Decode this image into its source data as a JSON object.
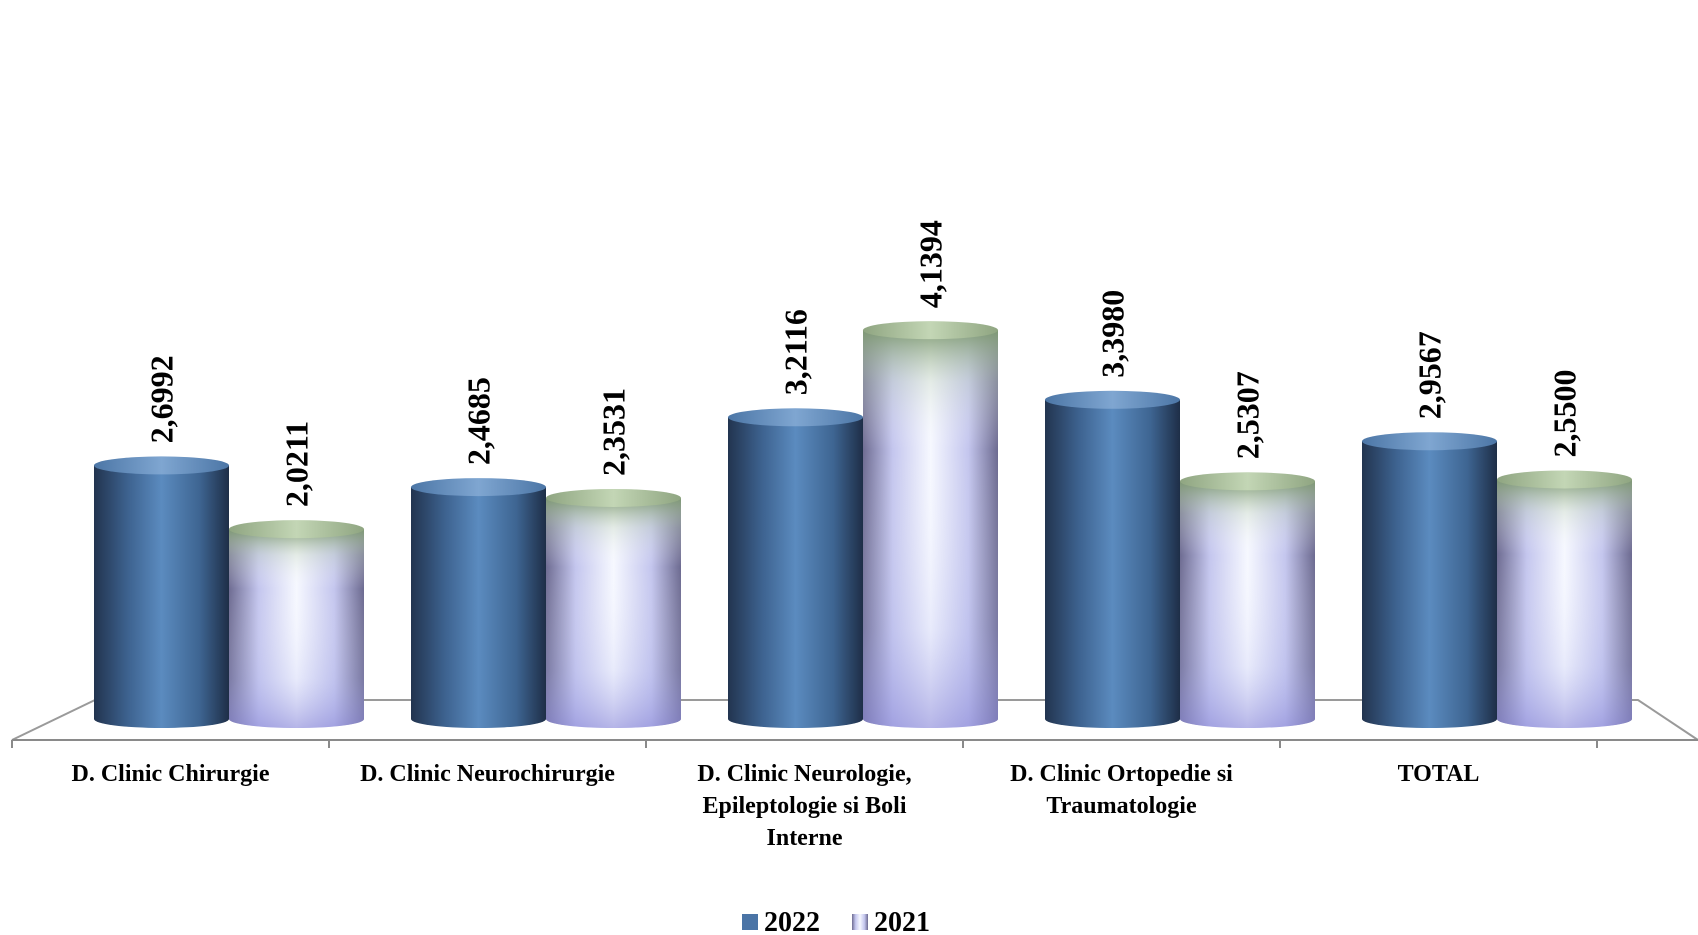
{
  "chart_data": {
    "type": "bar",
    "style": "3d-cylinder",
    "categories": [
      [
        "D. Clinic Chirurgie"
      ],
      [
        "D. Clinic Neurochirurgie"
      ],
      [
        "D. Clinic Neurologie,",
        "Epileptologie si Boli",
        "Interne"
      ],
      [
        "D. Clinic Ortopedie si",
        "Traumatologie"
      ],
      [
        "TOTAL"
      ]
    ],
    "series": [
      {
        "name": "2022",
        "values": [
          2.6992,
          2.4685,
          3.2116,
          3.398,
          2.9567
        ],
        "labels": [
          "2,6992",
          "2,4685",
          "3,2116",
          "3,3980",
          "2,9567"
        ],
        "color": "#4a74a6"
      },
      {
        "name": "2021",
        "values": [
          2.0211,
          2.3531,
          4.1394,
          2.5307,
          2.55
        ],
        "labels": [
          "2,0211",
          "2,3531",
          "4,1394",
          "2,5307",
          "2,5500"
        ],
        "color": "#c8ccf4"
      }
    ],
    "ylim": [
      0,
      4.5
    ],
    "grid": false,
    "legend": "bottom",
    "data_label_orientation": "vertical"
  }
}
